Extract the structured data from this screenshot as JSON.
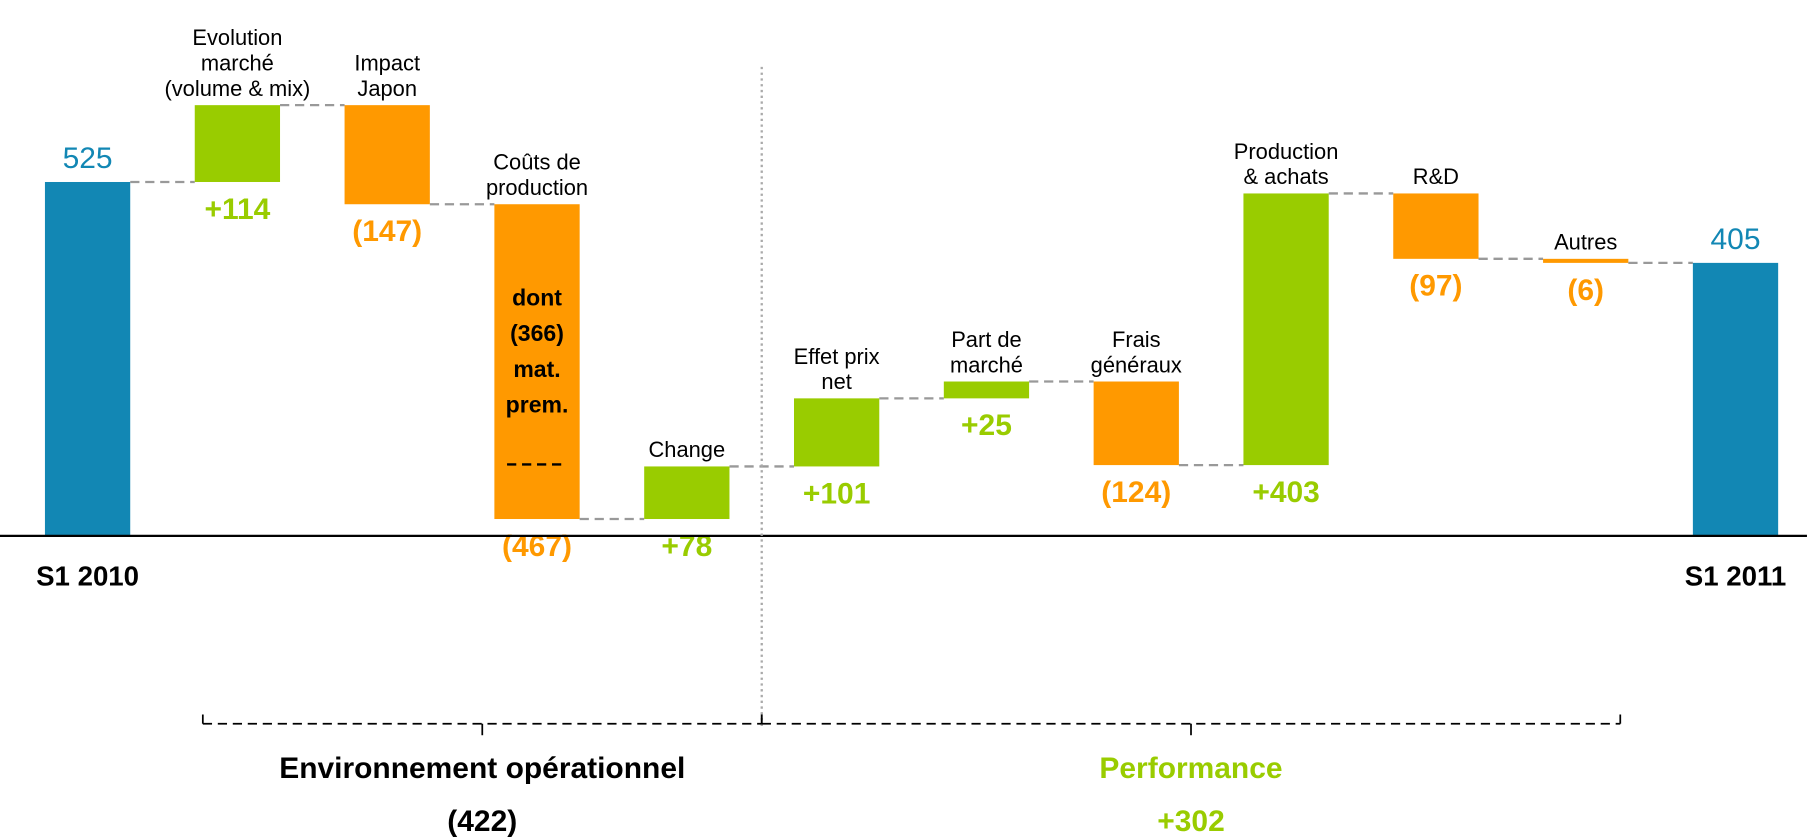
{
  "chart_data": {
    "type": "waterfall",
    "categories": [
      [
        "S1 2010"
      ],
      [
        "Evolution",
        "marché",
        "(volume & mix)"
      ],
      [
        "Impact",
        "Japon"
      ],
      [
        "Coûts de",
        "production"
      ],
      [
        "Change"
      ],
      [
        "Effet prix",
        "net"
      ],
      [
        "Part de",
        "marché"
      ],
      [
        "Frais",
        "généraux"
      ],
      [
        "Production",
        "& achats"
      ],
      [
        "R&D"
      ],
      [
        "Autres"
      ],
      [
        "S1 2011"
      ]
    ],
    "values": [
      525,
      114,
      -147,
      -467,
      78,
      101,
      25,
      -124,
      403,
      -97,
      -6,
      405
    ],
    "value_labels": [
      "525",
      "+114",
      "(147)",
      "(467)",
      "+78",
      "+101",
      "+25",
      "(124)",
      "+403",
      "(97)",
      "(6)",
      "405"
    ],
    "total_indices": [
      0,
      11
    ],
    "colors": {
      "total": "#1287b4",
      "increase": "#99cc00",
      "decrease": "#ff9900"
    },
    "ylim": [
      0,
      795
    ],
    "annotation": {
      "category_index": 3,
      "lines": [
        "dont",
        "(366)",
        "mat.",
        "prem."
      ]
    },
    "groups": [
      {
        "from": 1,
        "to": 4,
        "lines": [
          "Environnement opérationnel",
          "(422)"
        ],
        "color": "#000000"
      },
      {
        "from": 5,
        "to": 10,
        "lines": [
          "Performance",
          "+302"
        ],
        "color": "#99cc00"
      }
    ]
  }
}
